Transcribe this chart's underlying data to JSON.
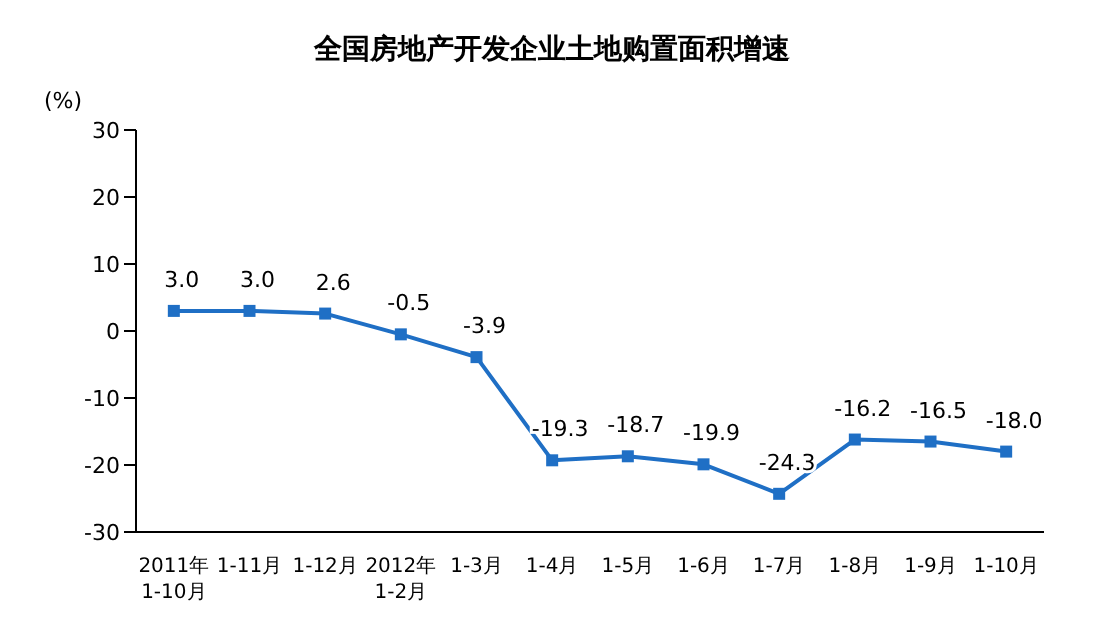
{
  "chart_data": {
    "type": "line",
    "title": "全国房地产开发企业土地购置面积增速",
    "ylabel": "(%)",
    "categories": [
      "2011年\n1-10月",
      "1-11月",
      "1-12月",
      "2012年\n1-2月",
      "1-3月",
      "1-4月",
      "1-5月",
      "1-6月",
      "1-7月",
      "1-8月",
      "1-9月",
      "1-10月"
    ],
    "series": [
      {
        "color": "#1f6fc5",
        "values": [
          3.0,
          3.0,
          2.6,
          -0.5,
          -3.9,
          -19.3,
          -18.7,
          -19.9,
          -24.3,
          -16.2,
          -16.5,
          -18.0
        ],
        "value_labels": [
          "3.0",
          "3.0",
          "2.6",
          "-0.5",
          "-3.9",
          "-19.3",
          "-18.7",
          "-19.9",
          "-24.3",
          "-16.2",
          "-16.5",
          "-18.0"
        ]
      }
    ],
    "ylim": [
      -30,
      30
    ],
    "yticks": [
      -30,
      -20,
      -10,
      0,
      10,
      20,
      30
    ],
    "marker": "square",
    "line_style": "solid"
  }
}
